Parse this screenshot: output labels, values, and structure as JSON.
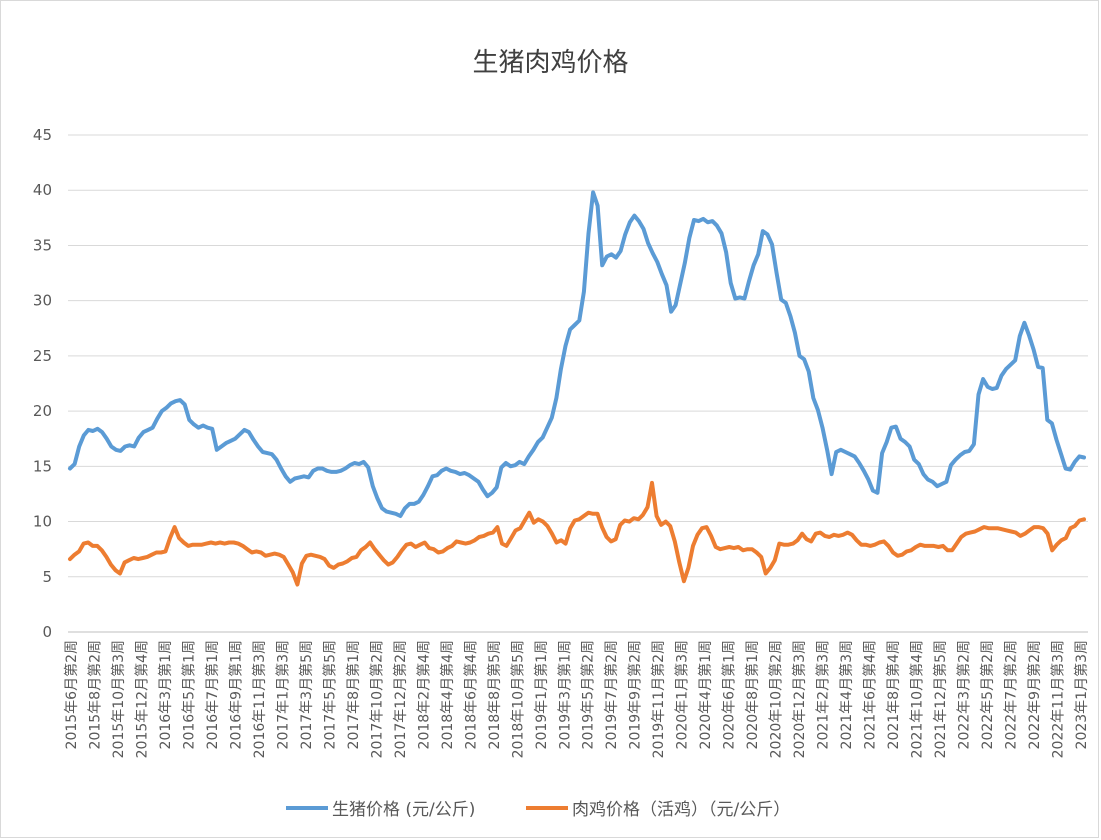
{
  "chart_data": {
    "type": "line",
    "title": "生猪肉鸡价格",
    "ylim": [
      0,
      45
    ],
    "yticks": [
      "0",
      "5",
      "10",
      "15",
      "20",
      "25",
      "30",
      "35",
      "40",
      "45"
    ],
    "grid": "horizontal",
    "legend_position": "bottom",
    "x_tick_labels": [
      "2015年6月第2周",
      "2015年8月第2周",
      "2015年10月第3周",
      "2015年12月第4周",
      "2016年3月第1周",
      "2016年5月第1周",
      "2016年7月第1周",
      "2016年9月第1周",
      "2016年11月第3周",
      "2017年1月第3周",
      "2017年3月第5周",
      "2017年5月第5周",
      "2017年8月第1周",
      "2017年10月第2周",
      "2017年12月第2周",
      "2018年2月第4周",
      "2018年4月第4周",
      "2018年6月第4周",
      "2018年8月第5周",
      "2018年10月第5周",
      "2019年1月第1周",
      "2019年3月第1周",
      "2019年5月第2周",
      "2019年7月第2周",
      "2019年9月第2周",
      "2019年11月第2周",
      "2020年1月第3周",
      "2020年4月第1周",
      "2020年6月第1周",
      "2020年8月第1周",
      "2020年10月第2周",
      "2020年12月第3周",
      "2021年2月第3周",
      "2021年4月第3周",
      "2021年6月第4周",
      "2021年8月第4周",
      "2021年10月第4周",
      "2021年12月第5周",
      "2022年3月第2周",
      "2022年5月第2周",
      "2022年7月第2周",
      "2022年9月第2周",
      "2022年11月第3周",
      "2023年1月第3周"
    ],
    "series": [
      {
        "name": "生猪价格 (元/公斤)",
        "color": "#5b9bd5",
        "values": [
          14.8,
          15.2,
          16.8,
          17.8,
          18.3,
          18.2,
          18.4,
          18.1,
          17.5,
          16.8,
          16.5,
          16.4,
          16.8,
          16.9,
          16.8,
          17.6,
          18.1,
          18.3,
          18.5,
          19.3,
          20.0,
          20.3,
          20.7,
          20.9,
          21.0,
          20.6,
          19.2,
          18.8,
          18.5,
          18.7,
          18.5,
          18.4,
          16.5,
          16.8,
          17.1,
          17.3,
          17.5,
          17.9,
          18.3,
          18.1,
          17.4,
          16.8,
          16.3,
          16.2,
          16.1,
          15.6,
          14.8,
          14.1,
          13.6,
          13.9,
          14.0,
          14.1,
          14.0,
          14.6,
          14.8,
          14.8,
          14.6,
          14.5,
          14.5,
          14.6,
          14.8,
          15.1,
          15.3,
          15.2,
          15.4,
          14.9,
          13.2,
          12.1,
          11.2,
          10.9,
          10.8,
          10.7,
          10.5,
          11.2,
          11.6,
          11.6,
          11.8,
          12.4,
          13.2,
          14.1,
          14.2,
          14.6,
          14.8,
          14.6,
          14.5,
          14.3,
          14.4,
          14.2,
          13.9,
          13.6,
          12.9,
          12.3,
          12.6,
          13.1,
          14.9,
          15.3,
          15.0,
          15.1,
          15.4,
          15.2,
          15.9,
          16.5,
          17.2,
          17.6,
          18.5,
          19.4,
          21.2,
          23.8,
          25.9,
          27.4,
          27.8,
          28.2,
          30.8,
          36.1,
          39.8,
          38.6,
          33.2,
          34.0,
          34.2,
          33.9,
          34.5,
          36.0,
          37.1,
          37.7,
          37.2,
          36.5,
          35.2,
          34.3,
          33.5,
          32.4,
          31.4,
          29.0,
          29.6,
          31.5,
          33.4,
          35.7,
          37.3,
          37.2,
          37.4,
          37.1,
          37.2,
          36.8,
          36.1,
          34.4,
          31.6,
          30.2,
          30.3,
          30.2,
          31.8,
          33.2,
          34.2,
          36.3,
          36.0,
          35.1,
          32.5,
          30.1,
          29.8,
          28.6,
          27.1,
          25.0,
          24.7,
          23.6,
          21.2,
          20.1,
          18.5,
          16.5,
          14.3,
          16.3,
          16.5,
          16.3,
          16.1,
          15.9,
          15.3,
          14.6,
          13.8,
          12.8,
          12.6,
          16.2,
          17.2,
          18.5,
          18.6,
          17.5,
          17.2,
          16.8,
          15.6,
          15.2,
          14.3,
          13.8,
          13.6,
          13.2,
          13.4,
          13.6,
          15.1,
          15.6,
          16.0,
          16.3,
          16.4,
          17.0,
          21.5,
          22.9,
          22.2,
          22.0,
          22.1,
          23.2,
          23.8,
          24.2,
          24.6,
          26.8,
          28.0,
          26.9,
          25.6,
          24.0,
          23.9,
          19.2,
          18.9,
          17.4,
          16.1,
          14.8,
          14.7,
          15.4,
          15.9,
          15.8
        ]
      },
      {
        "name": "肉鸡价格（活鸡）（元/公斤）",
        "color": "#ed7d31",
        "values": [
          6.6,
          7.0,
          7.3,
          8.0,
          8.1,
          7.8,
          7.8,
          7.4,
          6.8,
          6.1,
          5.6,
          5.3,
          6.3,
          6.5,
          6.7,
          6.6,
          6.7,
          6.8,
          7.0,
          7.2,
          7.2,
          7.3,
          8.5,
          9.5,
          8.5,
          8.1,
          7.8,
          7.9,
          7.9,
          7.9,
          8.0,
          8.1,
          8.0,
          8.1,
          8.0,
          8.1,
          8.1,
          8.0,
          7.8,
          7.5,
          7.2,
          7.3,
          7.2,
          6.9,
          7.0,
          7.1,
          7.0,
          6.8,
          6.1,
          5.4,
          4.3,
          6.2,
          6.9,
          7.0,
          6.9,
          6.8,
          6.6,
          6.0,
          5.8,
          6.1,
          6.2,
          6.4,
          6.7,
          6.8,
          7.4,
          7.7,
          8.1,
          7.5,
          7.0,
          6.5,
          6.1,
          6.3,
          6.8,
          7.4,
          7.9,
          8.0,
          7.7,
          7.9,
          8.1,
          7.6,
          7.5,
          7.2,
          7.3,
          7.6,
          7.8,
          8.2,
          8.1,
          8.0,
          8.1,
          8.3,
          8.6,
          8.7,
          8.9,
          9.0,
          9.5,
          8.0,
          7.8,
          8.5,
          9.2,
          9.4,
          10.1,
          10.8,
          9.9,
          10.2,
          10.0,
          9.6,
          8.9,
          8.1,
          8.3,
          8.0,
          9.4,
          10.1,
          10.2,
          10.5,
          10.8,
          10.7,
          10.7,
          9.5,
          8.6,
          8.2,
          8.4,
          9.7,
          10.1,
          10.0,
          10.3,
          10.2,
          10.6,
          11.3,
          13.5,
          10.5,
          9.7,
          10.0,
          9.6,
          8.2,
          6.3,
          4.6,
          5.8,
          7.8,
          8.8,
          9.4,
          9.5,
          8.7,
          7.7,
          7.5,
          7.6,
          7.7,
          7.6,
          7.7,
          7.4,
          7.5,
          7.5,
          7.2,
          6.8,
          5.3,
          5.8,
          6.5,
          8.0,
          7.9,
          7.9,
          8.0,
          8.3,
          8.9,
          8.4,
          8.2,
          8.9,
          9.0,
          8.7,
          8.6,
          8.8,
          8.7,
          8.8,
          9.0,
          8.8,
          8.3,
          7.9,
          7.9,
          7.8,
          7.9,
          8.1,
          8.2,
          7.8,
          7.2,
          6.9,
          7.0,
          7.3,
          7.4,
          7.7,
          7.9,
          7.8,
          7.8,
          7.8,
          7.7,
          7.8,
          7.4,
          7.4,
          8.0,
          8.6,
          8.9,
          9.0,
          9.1,
          9.3,
          9.5,
          9.4,
          9.4,
          9.4,
          9.3,
          9.2,
          9.1,
          9.0,
          8.7,
          8.9,
          9.2,
          9.5,
          9.5,
          9.4,
          8.9,
          7.4,
          7.9,
          8.3,
          8.5,
          9.4,
          9.6,
          10.1,
          10.2
        ]
      }
    ]
  }
}
